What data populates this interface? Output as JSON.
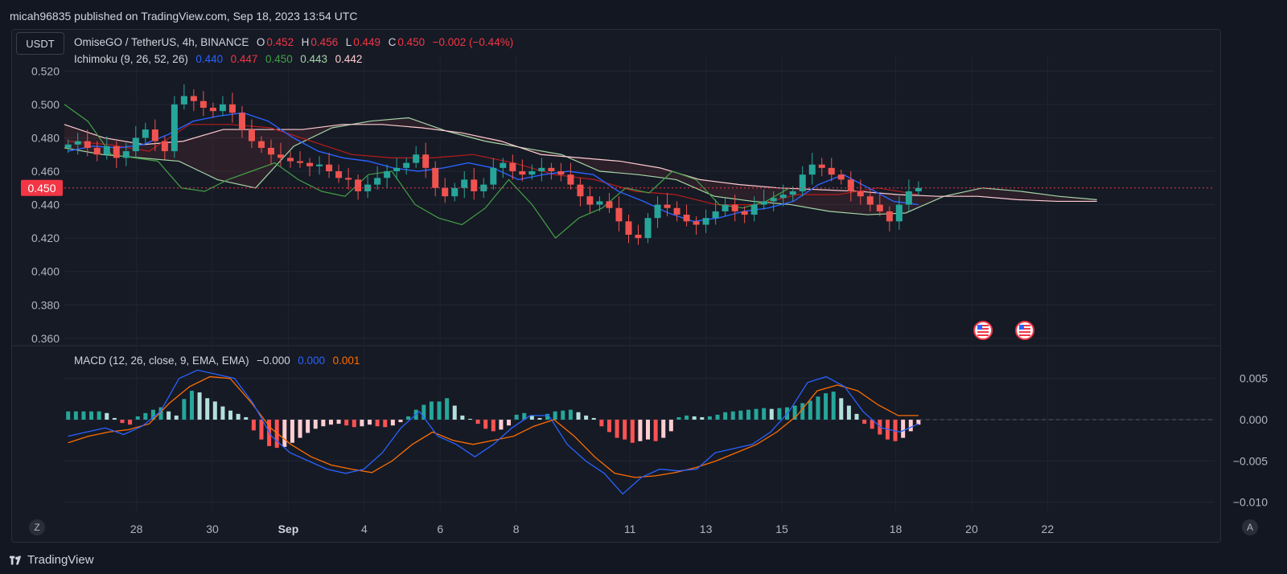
{
  "header": {
    "published": "micah96835 published on TradingView.com, Sep 18, 2023 13:54 UTC"
  },
  "quote_currency": "USDT",
  "legend": {
    "symbol": "OmiseGO / TetherUS, 4h, BINANCE",
    "o_label": "O",
    "o_value": "0.452",
    "h_label": "H",
    "h_value": "0.456",
    "l_label": "L",
    "l_value": "0.449",
    "c_label": "C",
    "c_value": "0.450",
    "change": "−0.002 (−0.44%)",
    "ichimoku_label": "Ichimoku (9, 26, 52, 26)",
    "ichimoku_values": [
      "0.440",
      "0.447",
      "0.450",
      "0.443",
      "0.442"
    ],
    "macd_label": "MACD (12, 26, close, 9, EMA, EMA)",
    "macd_values": [
      "−0.000",
      "0.000",
      "0.001"
    ]
  },
  "colors": {
    "up": "#26a69a",
    "down": "#ef5350",
    "tenkan": "#2962ff",
    "kijun": "#b71c1c",
    "chikou": "#43a047",
    "spanA": "#a5d6a7",
    "spanB": "#ffcdd2",
    "macd": "#2962ff",
    "signal": "#ff6d00",
    "hist_up_strong": "#26a69a",
    "hist_up_weak": "#b2dfdb",
    "hist_down_strong": "#ff5252",
    "hist_down_weak": "#ffcdd2",
    "price_tag": "#f23645"
  },
  "chart_data": [
    {
      "type": "candlestick",
      "name": "price",
      "yticks": [
        "0.520",
        "0.500",
        "0.480",
        "0.460",
        "0.440",
        "0.420",
        "0.400",
        "0.380",
        "0.360"
      ],
      "ylim": [
        0.358,
        0.524
      ],
      "last_price": "0.450",
      "x_days": [
        27,
        29,
        31,
        33,
        35,
        37,
        39,
        41,
        43,
        45,
        47,
        49,
        51,
        53,
        55
      ],
      "x_labels": [
        "28",
        "30",
        "Sep",
        "4",
        "6",
        "8",
        "11",
        "13",
        "15",
        "18",
        "20",
        "22"
      ],
      "close_series": [
        0.476,
        0.478,
        0.474,
        0.47,
        0.475,
        0.468,
        0.472,
        0.48,
        0.485,
        0.478,
        0.472,
        0.5,
        0.505,
        0.502,
        0.498,
        0.496,
        0.5,
        0.495,
        0.485,
        0.478,
        0.474,
        0.47,
        0.468,
        0.466,
        0.465,
        0.463,
        0.464,
        0.46,
        0.456,
        0.455,
        0.448,
        0.452,
        0.456,
        0.46,
        0.462,
        0.465,
        0.47,
        0.462,
        0.45,
        0.445,
        0.45,
        0.455,
        0.448,
        0.452,
        0.462,
        0.465,
        0.46,
        0.458,
        0.46,
        0.462,
        0.46,
        0.458,
        0.452,
        0.445,
        0.44,
        0.442,
        0.438,
        0.43,
        0.422,
        0.42,
        0.432,
        0.44,
        0.438,
        0.434,
        0.43,
        0.428,
        0.432,
        0.436,
        0.44,
        0.436,
        0.434,
        0.44,
        0.442,
        0.444,
        0.446,
        0.448,
        0.458,
        0.464,
        0.462,
        0.458,
        0.455,
        0.448,
        0.445,
        0.44,
        0.436,
        0.43,
        0.44,
        0.448,
        0.45
      ],
      "tenkan_sen": [
        0.472,
        0.475,
        0.474,
        0.476,
        0.482,
        0.49,
        0.493,
        0.495,
        0.49,
        0.48,
        0.472,
        0.468,
        0.466,
        0.462,
        0.46,
        0.462,
        0.465,
        0.462,
        0.455,
        0.458,
        0.46,
        0.458,
        0.448,
        0.442,
        0.435,
        0.43,
        0.432,
        0.436,
        0.438,
        0.442,
        0.452,
        0.458,
        0.45,
        0.442,
        0.44
      ],
      "kijun_sen": [
        0.478,
        0.476,
        0.472,
        0.488,
        0.488,
        0.486,
        0.478,
        0.47,
        0.468,
        0.468,
        0.47,
        0.465,
        0.458,
        0.455,
        0.448,
        0.446,
        0.44,
        0.44,
        0.446,
        0.446,
        0.45,
        0.446
      ],
      "chikou_span": [
        0.5,
        0.49,
        0.47,
        0.468,
        0.466,
        0.45,
        0.448,
        0.455,
        0.46,
        0.465,
        0.455,
        0.448,
        0.445,
        0.458,
        0.46,
        0.44,
        0.432,
        0.428,
        0.438,
        0.455,
        0.44,
        0.42,
        0.432,
        0.438,
        0.45,
        0.447,
        0.46,
        0.455,
        0.44,
        0.438,
        0.442,
        0.45
      ],
      "senkou_a": [
        0.474,
        0.47,
        0.468,
        0.466,
        0.455,
        0.45,
        0.475,
        0.486,
        0.49,
        0.492,
        0.484,
        0.478,
        0.474,
        0.47,
        0.46,
        0.458,
        0.455,
        0.445,
        0.442,
        0.44,
        0.436,
        0.434,
        0.435,
        0.445,
        0.45,
        0.448,
        0.445,
        0.443
      ],
      "senkou_b": [
        0.488,
        0.48,
        0.476,
        0.478,
        0.485,
        0.485,
        0.485,
        0.488,
        0.488,
        0.486,
        0.483,
        0.478,
        0.47,
        0.468,
        0.466,
        0.462,
        0.455,
        0.452,
        0.45,
        0.449,
        0.448,
        0.446,
        0.445,
        0.445,
        0.443,
        0.442,
        0.442
      ],
      "events": [
        "us-flag-icon",
        "us-flag-icon"
      ]
    },
    {
      "type": "bar+line",
      "name": "macd",
      "yticks": [
        "0.005",
        "0.000",
        "−0.005",
        "−0.010"
      ],
      "ylim": [
        -0.011,
        0.0075
      ],
      "histogram": [
        0.001,
        0.001,
        0.001,
        0.001,
        0.001,
        0.0008,
        0.0002,
        -0.0004,
        -0.0006,
        0.0004,
        0.0008,
        0.0012,
        0.0015,
        0.001,
        0.0005,
        0.0025,
        0.0035,
        0.0033,
        0.0026,
        0.0022,
        0.0016,
        0.0011,
        0.0007,
        0.0003,
        -0.0013,
        -0.0024,
        -0.0032,
        -0.0034,
        -0.0033,
        -0.0028,
        -0.0022,
        -0.0016,
        -0.0011,
        -0.0008,
        -0.0006,
        -0.0005,
        -0.0007,
        -0.0009,
        -0.0008,
        -0.0006,
        -0.0008,
        -0.0009,
        -0.0007,
        -0.0003,
        0.0004,
        0.0012,
        0.0018,
        0.0022,
        0.0022,
        0.0026,
        0.0017,
        0.0005,
        0.0001,
        -0.0005,
        -0.0011,
        -0.0014,
        -0.0012,
        -0.0007,
        0.0006,
        0.0008,
        0.0005,
        0.0002,
        0.0007,
        0.001,
        0.0011,
        0.0012,
        0.0009,
        0.0005,
        0.0002,
        -0.0008,
        -0.0015,
        -0.0022,
        -0.0024,
        -0.0028,
        -0.0026,
        -0.0024,
        -0.0026,
        -0.0022,
        -0.0014,
        0.0003,
        0.0005,
        0.0004,
        0.0003,
        0.0004,
        0.0006,
        0.0009,
        0.001,
        0.0011,
        0.0012,
        0.0013,
        0.0014,
        0.0013,
        0.0014,
        0.0015,
        0.0017,
        0.002,
        0.0023,
        0.0028,
        0.0032,
        0.0034,
        0.0026,
        0.0017,
        0.0007,
        -0.0005,
        -0.0011,
        -0.0018,
        -0.0024,
        -0.0026,
        -0.0022,
        -0.0014,
        -0.0006
      ],
      "macd_line": [
        -0.002,
        -0.0015,
        -0.001,
        -0.0018,
        -0.0008,
        0.001,
        0.005,
        0.006,
        0.0055,
        0.005,
        0.002,
        -0.002,
        -0.004,
        -0.005,
        -0.006,
        -0.0065,
        -0.006,
        -0.004,
        -0.001,
        0.001,
        -0.002,
        -0.003,
        -0.0045,
        -0.003,
        -0.001,
        0.0005,
        0.0005,
        -0.003,
        -0.005,
        -0.0065,
        -0.009,
        -0.007,
        -0.006,
        -0.0062,
        -0.006,
        -0.004,
        -0.0035,
        -0.003,
        -0.0015,
        0.001,
        0.0045,
        0.0052,
        0.004,
        0.001,
        -0.001,
        -0.0015,
        -0.0005
      ],
      "signal_line": [
        -0.0028,
        -0.002,
        -0.0015,
        -0.0012,
        -0.0005,
        0.002,
        0.004,
        0.0052,
        0.005,
        0.0022,
        -0.001,
        -0.003,
        -0.0045,
        -0.0055,
        -0.006,
        -0.0064,
        -0.005,
        -0.003,
        -0.0015,
        -0.0025,
        -0.003,
        -0.0025,
        -0.002,
        -0.0008,
        0.0,
        -0.002,
        -0.0045,
        -0.0065,
        -0.007,
        -0.0068,
        -0.0064,
        -0.0058,
        -0.005,
        -0.004,
        -0.003,
        -0.0015,
        0.0005,
        0.0035,
        0.0042,
        0.0035,
        0.0018,
        0.0005,
        0.0005
      ]
    }
  ],
  "footer": {
    "brand": "TradingView",
    "left_btn": "Z",
    "right_btn": "A"
  }
}
